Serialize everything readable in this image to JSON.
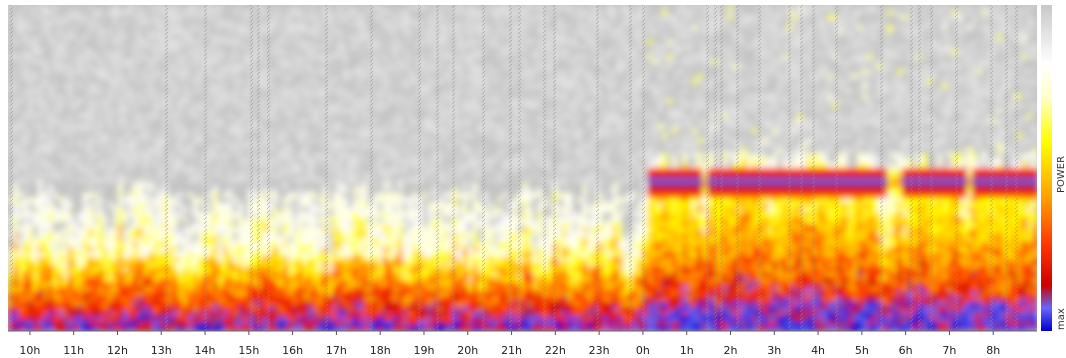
{
  "chart_data": {
    "type": "heatmap",
    "title": "",
    "xlabel": "",
    "ylabel": "",
    "x_ticks": [
      "10h",
      "11h",
      "12h",
      "13h",
      "14h",
      "15h",
      "16h",
      "17h",
      "18h",
      "19h",
      "20h",
      "21h",
      "22h",
      "23h",
      "0h",
      "1h",
      "2h",
      "3h",
      "4h",
      "5h",
      "6h",
      "7h",
      "8h"
    ],
    "x_range_hours": [
      9.5,
      33.0
    ],
    "colorbar": {
      "label": "POWER",
      "max_label": "max",
      "colors": [
        "#0000cc",
        "#6666ff",
        "#cc0000",
        "#ff3300",
        "#ff9900",
        "#ffff00",
        "#ffffcc",
        "#ffffff",
        "#c8c8c8"
      ]
    },
    "hatch_color": "#9a9a9a",
    "background_color": "#c4c4c4"
  }
}
